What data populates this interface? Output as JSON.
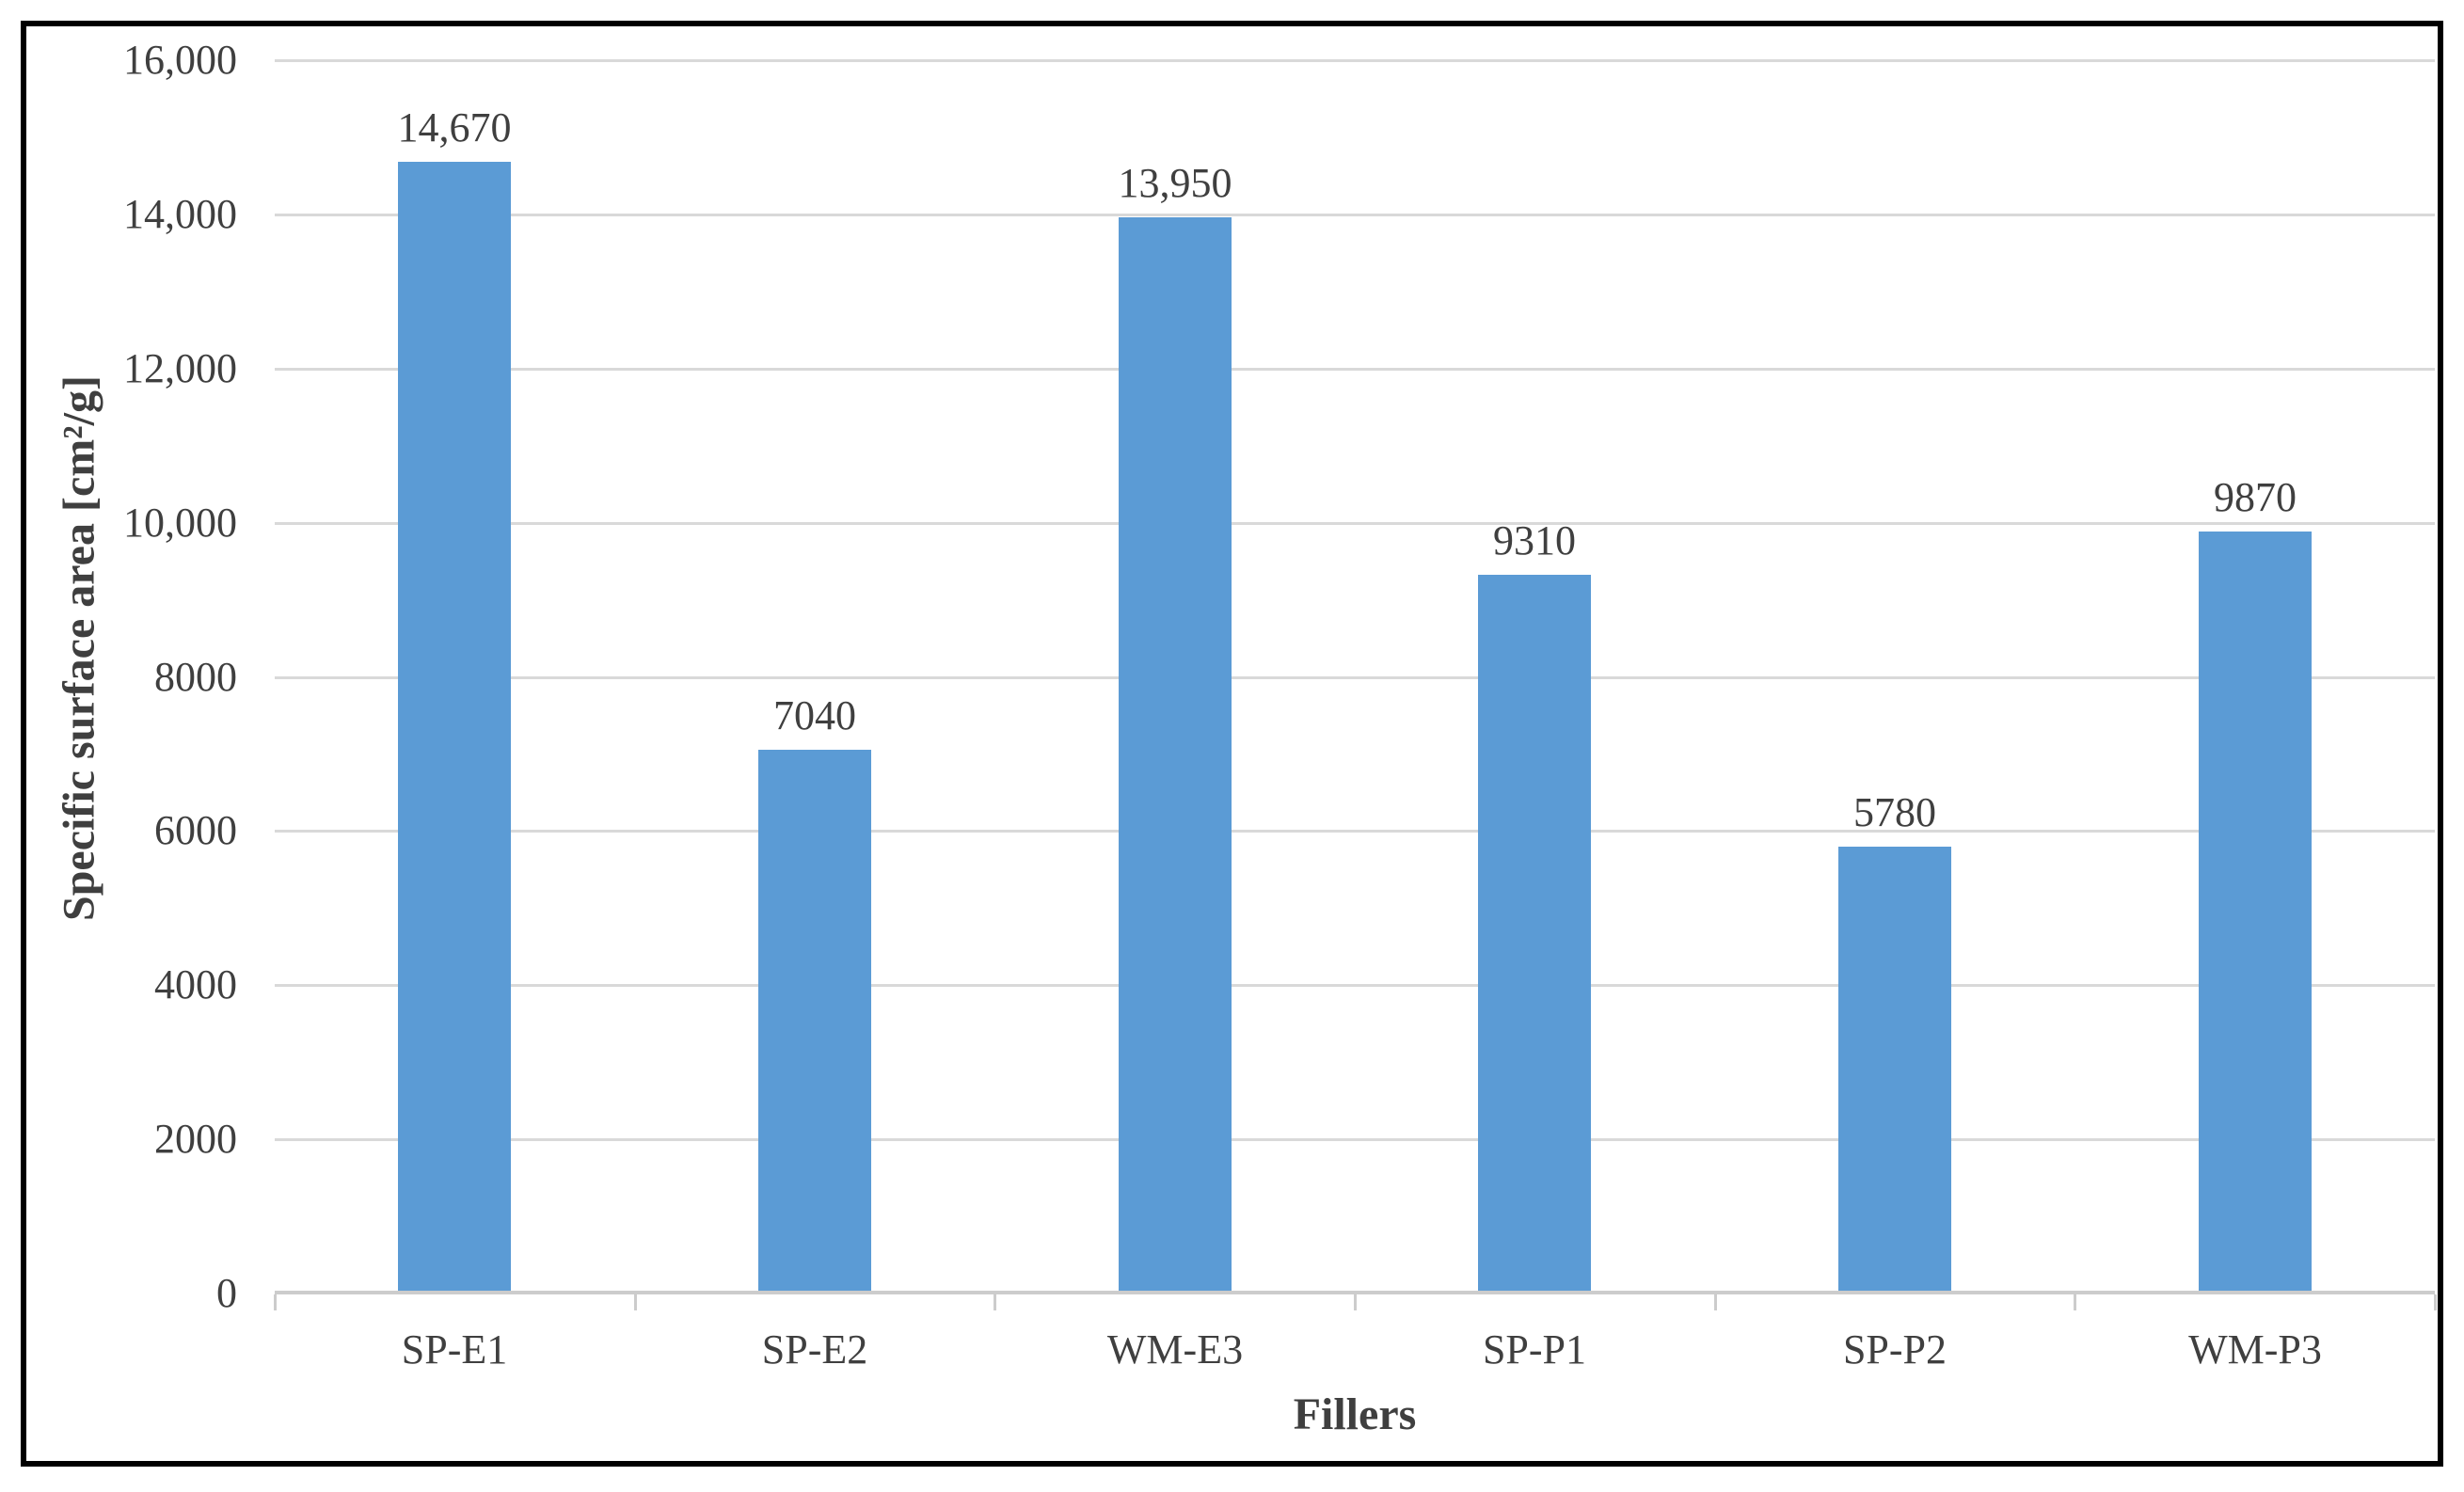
{
  "chart_data": {
    "type": "bar",
    "title": "",
    "xlabel": "Fillers",
    "ylabel": "Specific surface area [cm²/g]",
    "categories": [
      "SP-E1",
      "SP-E2",
      "WM-E3",
      "SP-P1",
      "SP-P2",
      "WM-P3"
    ],
    "values": [
      14670,
      7040,
      13950,
      9310,
      5780,
      9870
    ],
    "value_labels": [
      "14,670",
      "7040",
      "13,950",
      "9310",
      "5780",
      "9870"
    ],
    "ylim": [
      0,
      16000
    ],
    "yticks": [
      {
        "value": 0,
        "label": "0"
      },
      {
        "value": 2000,
        "label": "2000"
      },
      {
        "value": 4000,
        "label": "4000"
      },
      {
        "value": 6000,
        "label": "6000"
      },
      {
        "value": 8000,
        "label": "8000"
      },
      {
        "value": 10000,
        "label": "10,000"
      },
      {
        "value": 12000,
        "label": "12,000"
      },
      {
        "value": 14000,
        "label": "14,000"
      },
      {
        "value": 16000,
        "label": "16,000"
      }
    ],
    "grid": "horizontal",
    "legend": "none",
    "colors": {
      "bar": "#5b9bd5",
      "gridline": "#d9d9d9",
      "axis_line": "#cccccc",
      "text": "#3f3f3f",
      "frame_border": "#000000",
      "background": "#ffffff"
    }
  }
}
